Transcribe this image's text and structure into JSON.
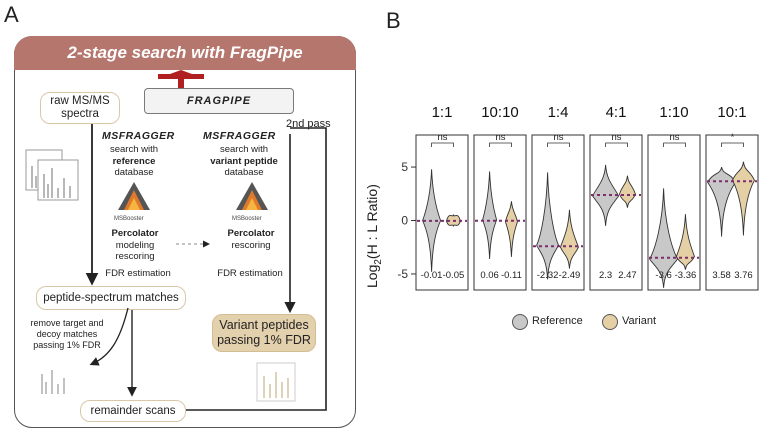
{
  "panel_a": {
    "letter": "A",
    "title": "2-stage search with FragPipe",
    "logo_text": "FRAGPIPE",
    "raw_spectra": "raw MS/MS spectra",
    "second_pass": "2nd pass",
    "first_search": {
      "tool": "MSFRAGGER",
      "line1": "search with",
      "line2": "reference",
      "line3": "database"
    },
    "second_search": {
      "tool": "MSFRAGGER",
      "line1": "search with",
      "line2": "variant peptide",
      "line3": "database"
    },
    "msbooster": "MSBooster",
    "first_rescoring": {
      "title": "Percolator",
      "line1": "modeling",
      "line2": "rescoring"
    },
    "second_rescoring": {
      "title": "Percolator",
      "line1": "rescoring"
    },
    "fdr_1": "FDR estimation",
    "fdr_2": "FDR estimation",
    "psm": "peptide-spectrum matches",
    "remove_note": "remove target and decoy matches passing 1% FDR",
    "variant_result": "Variant peptides passing 1% FDR",
    "remainder": "remainder scans"
  },
  "panel_b": {
    "letter": "B",
    "legend": [
      {
        "label": "Reference",
        "color": "#c8c8c8"
      },
      {
        "label": "Variant",
        "color": "#e5cfa5"
      }
    ]
  },
  "chart_data": {
    "type": "violin",
    "ylabel": "Log2(H : L Ratio)",
    "ylabel_main": "Log",
    "ylabel_sub": "2",
    "ylabel_rest": "(H : L  Ratio)",
    "yticks": [
      -5,
      0,
      5
    ],
    "ylim": [
      -6.5,
      8
    ],
    "reference_line": "dashed purple line at median",
    "series_names": [
      "Reference",
      "Variant"
    ],
    "colors": {
      "Reference": "#c8c8c8",
      "Variant": "#e5cfa5",
      "median_line": "#7b2d6e"
    },
    "panels": [
      {
        "label": "1:1",
        "significance": "ns",
        "medians": [
          -0.01,
          -0.05
        ],
        "median_labels": [
          "-0.01",
          "-0.05"
        ]
      },
      {
        "label": "10:10",
        "significance": "ns",
        "medians": [
          0.06,
          -0.11
        ],
        "median_labels": [
          "0.06",
          "-0.11"
        ]
      },
      {
        "label": "1:4",
        "significance": "ns",
        "medians": [
          -2.32,
          -2.49
        ],
        "median_labels": [
          "-2.32",
          "-2.49"
        ]
      },
      {
        "label": "4:1",
        "significance": "ns",
        "medians": [
          2.3,
          2.47
        ],
        "median_labels": [
          "2.3",
          "2.47"
        ]
      },
      {
        "label": "1:10",
        "significance": "ns",
        "medians": [
          -3.6,
          -3.36
        ],
        "median_labels": [
          "-3.6",
          "-3.36"
        ]
      },
      {
        "label": "10:1",
        "significance": "*",
        "medians": [
          3.58,
          3.76
        ],
        "median_labels": [
          "3.58",
          "3.76"
        ]
      }
    ]
  }
}
